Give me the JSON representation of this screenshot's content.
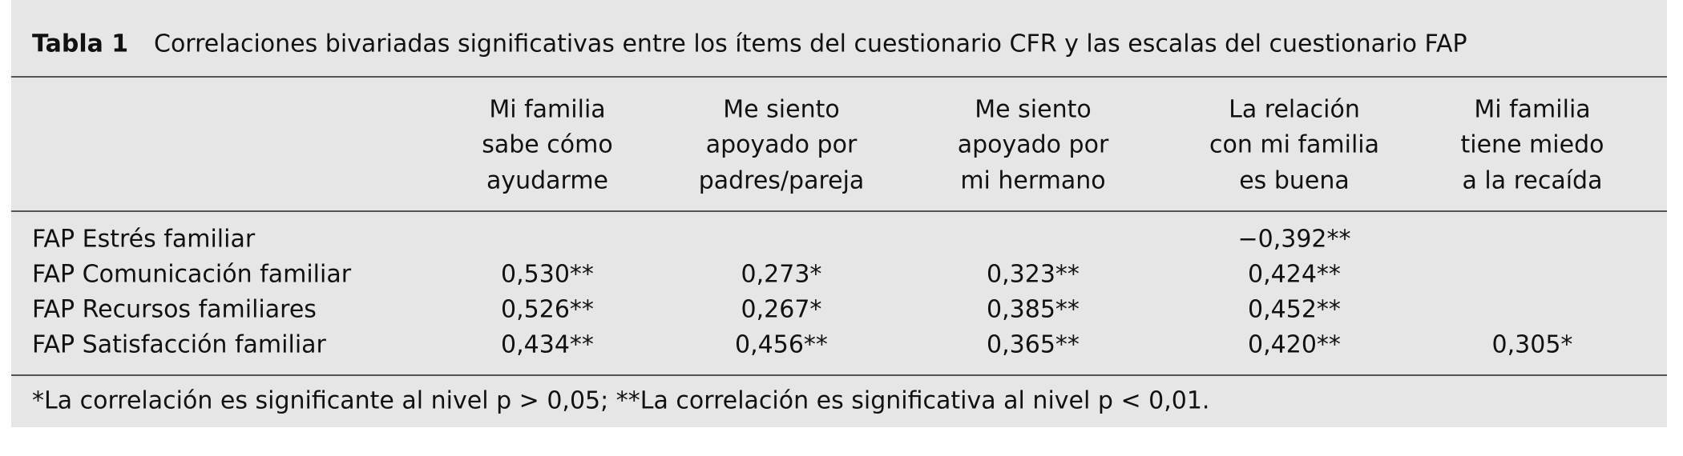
{
  "table": {
    "label": "Tabla 1",
    "caption": "Correlaciones bivariadas significativas entre los ítems del cuestionario CFR y las escalas del cuestionario FAP",
    "columns": [
      [
        "Mi familia",
        "sabe cómo",
        "ayudarme"
      ],
      [
        "Me siento",
        "apoyado por",
        "padres/pareja"
      ],
      [
        "Me siento",
        "apoyado por",
        "mi hermano"
      ],
      [
        "La relación",
        "con mi familia",
        "es buena"
      ],
      [
        "Mi familia",
        "tiene miedo",
        "a la recaída"
      ]
    ],
    "rows": [
      {
        "label": "FAP Estrés familiar",
        "cells": [
          null,
          null,
          null,
          "−0,392**",
          null
        ]
      },
      {
        "label": "FAP Comunicación familiar",
        "cells": [
          "0,530**",
          "0,273*",
          "0,323**",
          "0,424**",
          null
        ]
      },
      {
        "label": "FAP Recursos familiares",
        "cells": [
          "0,526**",
          "0,267*",
          "0,385**",
          "0,452**",
          null
        ]
      },
      {
        "label": "FAP Satisfacción familiar",
        "cells": [
          "0,434**",
          "0,456**",
          "0,365**",
          "0,420**",
          "0,305*"
        ]
      }
    ],
    "footnote": "*La correlación es significante al nivel p > 0,05; **La correlación es significativa al nivel p < 0,01."
  }
}
